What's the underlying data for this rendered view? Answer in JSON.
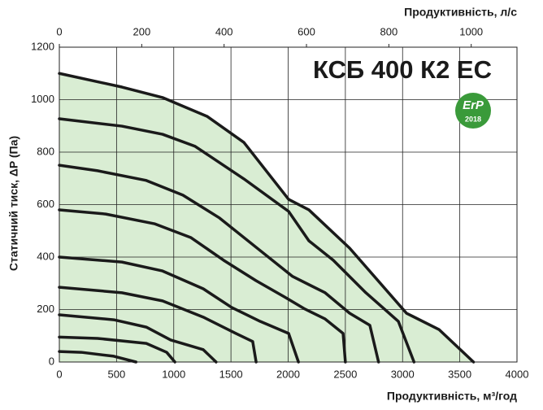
{
  "chart_data": {
    "type": "line",
    "title": "КСБ 400 К2 ЕС",
    "x_label": "Продуктивність, м³/год",
    "x2_label": "Продуктивність, л/с",
    "y_label": "Статичний тиск, ΔP (Па)",
    "badge": {
      "text": "ErP",
      "year": "2018",
      "color": "#3a9a3a"
    },
    "xlim": [
      0,
      4000
    ],
    "xticks": [
      0,
      500,
      1000,
      1500,
      2000,
      2500,
      3000,
      3500,
      4000
    ],
    "x2lim": [
      0,
      1111.1
    ],
    "x2ticks": [
      0,
      200,
      400,
      600,
      800,
      1000
    ],
    "ylim": [
      0,
      1200
    ],
    "yticks": [
      0,
      200,
      400,
      600,
      800,
      1000,
      1200
    ],
    "grid": true,
    "fill_color": "#d9edd3",
    "series": [
      {
        "color": "#1a1a1a",
        "x": [
          0,
          547,
          902,
          1293,
          1613,
          2004,
          2181,
          2537,
          3034,
          3318,
          3620
        ],
        "values": [
          1100,
          1048,
          1008,
          936,
          837,
          620,
          580,
          434,
          186,
          124,
          0
        ]
      },
      {
        "color": "#1a1a1a",
        "x": [
          0,
          547,
          902,
          1187,
          1613,
          2004,
          2181,
          2394,
          2679,
          2963,
          3100
        ],
        "values": [
          927,
          899,
          868,
          822,
          698,
          574,
          462,
          388,
          264,
          155,
          0
        ]
      },
      {
        "color": "#1a1a1a",
        "x": [
          0,
          334,
          760,
          1080,
          1400,
          1755,
          2039,
          2323,
          2537,
          2714,
          2790
        ],
        "values": [
          750,
          729,
          692,
          636,
          549,
          425,
          326,
          264,
          186,
          140,
          0
        ]
      },
      {
        "color": "#1a1a1a",
        "x": [
          0,
          405,
          831,
          1151,
          1435,
          1719,
          1968,
          2146,
          2323,
          2480,
          2500
        ],
        "values": [
          580,
          564,
          527,
          474,
          388,
          310,
          248,
          202,
          164,
          109,
          0
        ]
      },
      {
        "color": "#1a1a1a",
        "x": [
          0,
          547,
          902,
          1258,
          1506,
          1755,
          2004,
          2090
        ],
        "values": [
          400,
          381,
          347,
          279,
          208,
          155,
          109,
          0
        ]
      },
      {
        "color": "#1a1a1a",
        "x": [
          0,
          547,
          902,
          1258,
          1542,
          1690,
          1720
        ],
        "values": [
          285,
          264,
          233,
          171,
          109,
          78,
          0
        ]
      },
      {
        "color": "#1a1a1a",
        "x": [
          0,
          476,
          760,
          973,
          1258,
          1370
        ],
        "values": [
          180,
          161,
          133,
          84,
          47,
          0
        ]
      },
      {
        "color": "#1a1a1a",
        "x": [
          0,
          334,
          760,
          938,
          1010
        ],
        "values": [
          95,
          90,
          71,
          37,
          0
        ]
      },
      {
        "color": "#1a1a1a",
        "x": [
          0,
          192,
          476,
          670
        ],
        "values": [
          40,
          37,
          22,
          0
        ]
      }
    ]
  }
}
